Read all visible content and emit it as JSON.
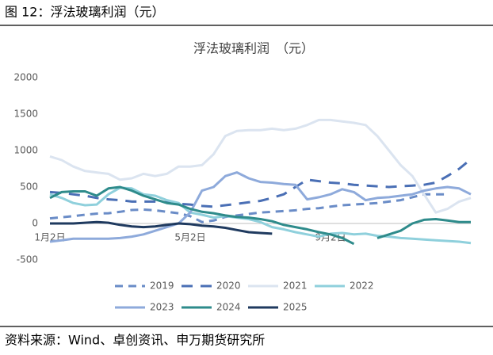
{
  "header": {
    "title": "图 12：浮法玻璃利润（元）"
  },
  "chart_data": {
    "type": "line",
    "title": "浮法玻璃利润　（元）",
    "categories": [
      "1月2日",
      null,
      null,
      null,
      null,
      null,
      null,
      null,
      null,
      null,
      null,
      null,
      "5月2日",
      null,
      null,
      null,
      null,
      null,
      null,
      null,
      null,
      null,
      null,
      null,
      "9月2日",
      null,
      null,
      null,
      null,
      null,
      null,
      null,
      null,
      null,
      null,
      null,
      null
    ],
    "ylim": [
      -500,
      2000
    ],
    "yticks": [
      -500,
      0,
      500,
      1000,
      1500,
      2000
    ],
    "series": [
      {
        "name": "2019",
        "color": "#6a8cc7",
        "dash": true,
        "values": [
          70,
          85,
          100,
          120,
          135,
          140,
          160,
          185,
          190,
          180,
          160,
          140,
          100,
          20,
          40,
          90,
          110,
          130,
          150,
          160,
          170,
          180,
          200,
          210,
          230,
          250,
          260,
          270,
          280,
          300,
          320,
          360,
          400,
          400,
          400,
          null,
          null
        ]
      },
      {
        "name": "2020",
        "color": "#4a6fb5",
        "dash": true,
        "values": [
          430,
          420,
          400,
          380,
          350,
          330,
          320,
          300,
          300,
          300,
          290,
          270,
          260,
          240,
          230,
          250,
          270,
          290,
          310,
          350,
          400,
          500,
          600,
          580,
          560,
          550,
          530,
          520,
          510,
          500,
          510,
          520,
          530,
          560,
          650,
          750,
          880
        ]
      },
      {
        "name": "2021",
        "color": "#dbe4f0",
        "dash": false,
        "values": [
          920,
          870,
          780,
          720,
          700,
          680,
          600,
          620,
          680,
          650,
          680,
          780,
          780,
          800,
          950,
          1200,
          1270,
          1280,
          1280,
          1300,
          1280,
          1300,
          1350,
          1420,
          1420,
          1400,
          1380,
          1350,
          1200,
          1000,
          800,
          650,
          400,
          150,
          200,
          300,
          350
        ]
      },
      {
        "name": "2022",
        "color": "#8fd0dc",
        "dash": false,
        "values": [
          400,
          350,
          280,
          250,
          260,
          400,
          490,
          480,
          400,
          380,
          320,
          280,
          150,
          120,
          80,
          100,
          80,
          60,
          20,
          -50,
          -80,
          -120,
          -150,
          -180,
          -140,
          -130,
          -150,
          -140,
          -170,
          -180,
          -200,
          -210,
          -220,
          -230,
          -240,
          -250,
          -270
        ]
      },
      {
        "name": "2023",
        "color": "#8eaadb",
        "dash": false,
        "values": [
          -250,
          -230,
          -210,
          -210,
          -210,
          -210,
          -200,
          -180,
          -150,
          -100,
          -50,
          0,
          150,
          450,
          500,
          650,
          700,
          620,
          570,
          560,
          540,
          530,
          330,
          360,
          400,
          470,
          430,
          320,
          350,
          360,
          380,
          400,
          450,
          480,
          500,
          480,
          400
        ]
      },
      {
        "name": "2024",
        "color": "#2e8b8b",
        "dash": false,
        "values": [
          350,
          430,
          440,
          440,
          380,
          480,
          500,
          450,
          380,
          330,
          280,
          260,
          200,
          160,
          140,
          110,
          90,
          80,
          60,
          30,
          -20,
          -50,
          -80,
          -120,
          -150,
          -200,
          -280,
          null,
          -200,
          -150,
          -100,
          0,
          50,
          60,
          40,
          20,
          20
        ]
      },
      {
        "name": "2025",
        "color": "#1f3a5f",
        "dash": false,
        "values": [
          0,
          0,
          0,
          10,
          20,
          10,
          -20,
          -40,
          -50,
          -40,
          -20,
          0,
          -10,
          -30,
          -40,
          -60,
          -90,
          -120,
          -130,
          -140,
          null,
          null,
          null,
          null,
          null,
          null,
          null,
          null,
          null,
          null,
          null,
          null,
          null,
          null,
          null,
          null,
          null
        ]
      }
    ]
  },
  "footer": {
    "source": "资料来源：Wind、卓创资讯、申万期货研究所"
  }
}
